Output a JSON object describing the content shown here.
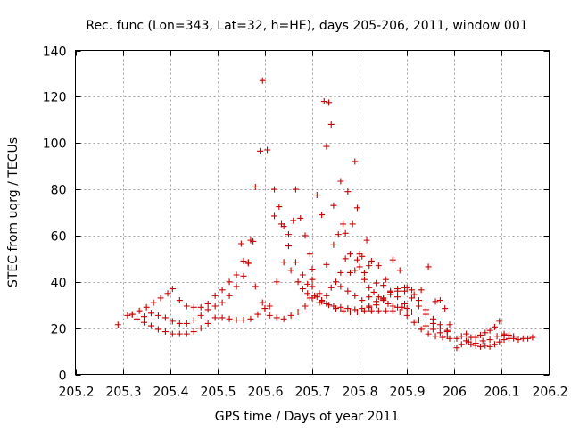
{
  "chart_data": {
    "type": "scatter",
    "title": "Rec. func (Lon=343, Lat=32, h=HE), days 205-206, 2011, window 001",
    "xlabel": "GPS time / Days of year 2011",
    "ylabel": "STEC from uqrg / TECUs",
    "xlim": [
      205.2,
      206.2
    ],
    "ylim": [
      0,
      140
    ],
    "xticks": [
      "205.2",
      "205.3",
      "205.4",
      "205.5",
      "205.6",
      "205.7",
      "205.8",
      "205.9",
      "206",
      "206.1",
      "206.2"
    ],
    "yticks": [
      "0",
      "20",
      "40",
      "60",
      "80",
      "100",
      "120",
      "140"
    ],
    "grid": true,
    "marker": "+",
    "color": "#cc0000",
    "series": [
      {
        "name": "STEC",
        "points": [
          [
            205.29,
            21.5
          ],
          [
            205.31,
            25.5
          ],
          [
            205.32,
            26.0
          ],
          [
            205.33,
            24.0
          ],
          [
            205.345,
            22.5
          ],
          [
            205.36,
            21.0
          ],
          [
            205.375,
            19.5
          ],
          [
            205.39,
            18.5
          ],
          [
            205.405,
            17.5
          ],
          [
            205.42,
            17.5
          ],
          [
            205.435,
            17.5
          ],
          [
            205.45,
            18.5
          ],
          [
            205.465,
            20.0
          ],
          [
            205.48,
            22.0
          ],
          [
            205.495,
            24.5
          ],
          [
            205.51,
            24.5
          ],
          [
            205.525,
            24.0
          ],
          [
            205.54,
            23.5
          ],
          [
            205.555,
            23.5
          ],
          [
            205.57,
            24.0
          ],
          [
            205.585,
            26.0
          ],
          [
            205.6,
            28.5
          ],
          [
            205.61,
            25.5
          ],
          [
            205.625,
            24.5
          ],
          [
            205.64,
            24.0
          ],
          [
            205.655,
            25.5
          ],
          [
            205.67,
            27.0
          ],
          [
            205.685,
            29.5
          ],
          [
            205.695,
            33.0
          ],
          [
            205.705,
            34.0
          ],
          [
            205.72,
            31.5
          ],
          [
            205.735,
            30.0
          ],
          [
            205.75,
            28.5
          ],
          [
            205.765,
            27.5
          ],
          [
            205.78,
            27.0
          ],
          [
            205.795,
            27.0
          ],
          [
            205.81,
            27.5
          ],
          [
            205.825,
            27.5
          ],
          [
            205.84,
            27.5
          ],
          [
            205.855,
            27.5
          ],
          [
            205.87,
            27.5
          ],
          [
            205.885,
            27.0
          ],
          [
            205.9,
            25.5
          ],
          [
            205.915,
            22.5
          ],
          [
            205.93,
            19.5
          ],
          [
            205.945,
            17.5
          ],
          [
            205.96,
            16.5
          ],
          [
            205.975,
            16.0
          ],
          [
            205.99,
            15.5
          ],
          [
            205.32,
            26.0
          ],
          [
            205.335,
            27.5
          ],
          [
            205.35,
            29.0
          ],
          [
            205.365,
            31.0
          ],
          [
            205.38,
            33.0
          ],
          [
            205.395,
            35.0
          ],
          [
            205.405,
            37.0
          ],
          [
            205.42,
            32.0
          ],
          [
            205.435,
            29.5
          ],
          [
            205.45,
            29.0
          ],
          [
            205.465,
            29.0
          ],
          [
            205.48,
            30.5
          ],
          [
            205.495,
            34.0
          ],
          [
            205.51,
            36.5
          ],
          [
            205.525,
            40.0
          ],
          [
            205.54,
            43.0
          ],
          [
            205.555,
            49.0
          ],
          [
            205.57,
            58.0
          ],
          [
            205.58,
            81.0
          ],
          [
            205.59,
            96.5
          ],
          [
            205.595,
            127.0
          ],
          [
            205.605,
            97.0
          ],
          [
            205.62,
            80.0
          ],
          [
            205.635,
            65.0
          ],
          [
            205.65,
            55.5
          ],
          [
            205.665,
            48.5
          ],
          [
            205.68,
            43.0
          ],
          [
            205.69,
            39.0
          ],
          [
            205.7,
            38.0
          ],
          [
            205.345,
            25.0
          ],
          [
            205.36,
            26.5
          ],
          [
            205.375,
            25.5
          ],
          [
            205.39,
            24.5
          ],
          [
            205.405,
            23.0
          ],
          [
            205.42,
            22.0
          ],
          [
            205.435,
            22.0
          ],
          [
            205.45,
            23.5
          ],
          [
            205.465,
            25.5
          ],
          [
            205.48,
            28.0
          ],
          [
            205.495,
            29.5
          ],
          [
            205.51,
            31.0
          ],
          [
            205.525,
            34.0
          ],
          [
            205.54,
            38.0
          ],
          [
            205.555,
            42.5
          ],
          [
            205.565,
            48.5
          ],
          [
            205.575,
            57.5
          ],
          [
            205.55,
            56.5
          ],
          [
            205.565,
            48.0
          ],
          [
            205.58,
            38.0
          ],
          [
            205.595,
            31.0
          ],
          [
            205.61,
            29.5
          ],
          [
            205.62,
            68.5
          ],
          [
            205.63,
            72.5
          ],
          [
            205.64,
            64.0
          ],
          [
            205.65,
            60.5
          ],
          [
            205.66,
            66.5
          ],
          [
            205.665,
            80.0
          ],
          [
            205.675,
            67.5
          ],
          [
            205.685,
            60.0
          ],
          [
            205.695,
            52.0
          ],
          [
            205.7,
            45.5
          ],
          [
            205.71,
            77.5
          ],
          [
            205.72,
            69.0
          ],
          [
            205.725,
            118.0
          ],
          [
            205.735,
            117.5
          ],
          [
            205.73,
            98.5
          ],
          [
            205.74,
            108.0
          ],
          [
            205.745,
            73.0
          ],
          [
            205.755,
            60.5
          ],
          [
            205.76,
            83.5
          ],
          [
            205.765,
            65.0
          ],
          [
            205.77,
            61.0
          ],
          [
            205.775,
            79.0
          ],
          [
            205.785,
            65.0
          ],
          [
            205.79,
            92.0
          ],
          [
            205.795,
            72.0
          ],
          [
            205.8,
            52.0
          ],
          [
            205.805,
            51.0
          ],
          [
            205.815,
            58.0
          ],
          [
            205.82,
            47.0
          ],
          [
            205.625,
            40.0
          ],
          [
            205.64,
            48.5
          ],
          [
            205.655,
            45.0
          ],
          [
            205.67,
            40.0
          ],
          [
            205.68,
            37.0
          ],
          [
            205.69,
            35.0
          ],
          [
            205.71,
            33.5
          ],
          [
            205.72,
            32.0
          ],
          [
            205.73,
            34.0
          ],
          [
            205.74,
            37.5
          ],
          [
            205.75,
            40.0
          ],
          [
            205.76,
            44.0
          ],
          [
            205.77,
            50.0
          ],
          [
            205.78,
            44.0
          ],
          [
            205.79,
            45.0
          ],
          [
            205.8,
            46.5
          ],
          [
            205.81,
            41.0
          ],
          [
            205.82,
            37.5
          ],
          [
            205.83,
            35.5
          ],
          [
            205.84,
            33.5
          ],
          [
            205.85,
            32.0
          ],
          [
            205.86,
            30.5
          ],
          [
            205.87,
            29.5
          ],
          [
            205.88,
            29.0
          ],
          [
            205.89,
            29.0
          ],
          [
            205.9,
            28.5
          ],
          [
            205.7,
            41.0
          ],
          [
            205.715,
            35.0
          ],
          [
            205.73,
            47.5
          ],
          [
            205.745,
            56.0
          ],
          [
            205.76,
            38.0
          ],
          [
            205.775,
            36.0
          ],
          [
            205.79,
            34.0
          ],
          [
            205.805,
            32.0
          ],
          [
            205.82,
            29.5
          ],
          [
            205.835,
            30.0
          ],
          [
            205.85,
            32.5
          ],
          [
            205.865,
            35.5
          ],
          [
            205.88,
            37.0
          ],
          [
            205.895,
            36.0
          ],
          [
            205.91,
            33.0
          ],
          [
            205.925,
            29.5
          ],
          [
            205.94,
            26.0
          ],
          [
            205.955,
            22.0
          ],
          [
            205.97,
            20.0
          ],
          [
            205.985,
            19.0
          ],
          [
            205.7,
            33.0
          ],
          [
            205.715,
            31.0
          ],
          [
            205.73,
            30.5
          ],
          [
            205.745,
            29.5
          ],
          [
            205.76,
            29.0
          ],
          [
            205.775,
            28.5
          ],
          [
            205.79,
            28.0
          ],
          [
            205.805,
            28.5
          ],
          [
            205.82,
            29.0
          ],
          [
            205.835,
            31.5
          ],
          [
            205.85,
            33.0
          ],
          [
            205.865,
            34.5
          ],
          [
            205.88,
            36.0
          ],
          [
            205.895,
            37.5
          ],
          [
            205.91,
            36.5
          ],
          [
            205.925,
            32.0
          ],
          [
            205.94,
            28.0
          ],
          [
            205.955,
            24.0
          ],
          [
            205.97,
            21.5
          ],
          [
            205.985,
            18.5
          ],
          [
            205.78,
            52.0
          ],
          [
            205.795,
            49.5
          ],
          [
            205.81,
            44.0
          ],
          [
            205.825,
            49.0
          ],
          [
            205.84,
            47.0
          ],
          [
            205.855,
            41.0
          ],
          [
            205.87,
            49.5
          ],
          [
            205.885,
            45.0
          ],
          [
            205.9,
            37.5
          ],
          [
            205.915,
            34.5
          ],
          [
            205.93,
            36.5
          ],
          [
            205.945,
            46.5
          ],
          [
            205.96,
            31.5
          ],
          [
            205.97,
            32.0
          ],
          [
            205.98,
            28.5
          ],
          [
            205.99,
            21.5
          ],
          [
            205.82,
            33.5
          ],
          [
            205.835,
            39.5
          ],
          [
            205.85,
            38.5
          ],
          [
            205.865,
            36.0
          ],
          [
            205.88,
            33.5
          ],
          [
            205.895,
            30.5
          ],
          [
            205.91,
            27.0
          ],
          [
            205.925,
            23.5
          ],
          [
            205.94,
            21.0
          ],
          [
            205.955,
            19.5
          ],
          [
            205.97,
            18.0
          ],
          [
            205.985,
            16.5
          ],
          [
            206.005,
            11.5
          ],
          [
            206.015,
            13.0
          ],
          [
            206.025,
            14.5
          ],
          [
            206.035,
            13.0
          ],
          [
            206.045,
            12.5
          ],
          [
            206.055,
            12.0
          ],
          [
            206.065,
            12.5
          ],
          [
            206.075,
            12.0
          ],
          [
            206.085,
            13.0
          ],
          [
            206.095,
            14.0
          ],
          [
            206.105,
            15.0
          ],
          [
            206.115,
            15.5
          ],
          [
            206.125,
            15.5
          ],
          [
            206.135,
            15.0
          ],
          [
            206.145,
            15.5
          ],
          [
            206.155,
            15.5
          ],
          [
            206.165,
            16.0
          ],
          [
            206.005,
            15.5
          ],
          [
            206.015,
            16.5
          ],
          [
            206.025,
            17.5
          ],
          [
            206.035,
            16.0
          ],
          [
            206.045,
            16.0
          ],
          [
            206.055,
            17.0
          ],
          [
            206.065,
            18.0
          ],
          [
            206.075,
            19.0
          ],
          [
            206.085,
            20.5
          ],
          [
            206.095,
            23.0
          ],
          [
            206.105,
            17.5
          ],
          [
            206.115,
            17.0
          ],
          [
            206.125,
            16.5
          ],
          [
            206.03,
            14.0
          ],
          [
            206.045,
            13.5
          ],
          [
            206.06,
            14.5
          ],
          [
            206.075,
            15.0
          ],
          [
            206.09,
            16.5
          ],
          [
            206.105,
            17.0
          ]
        ]
      }
    ]
  }
}
